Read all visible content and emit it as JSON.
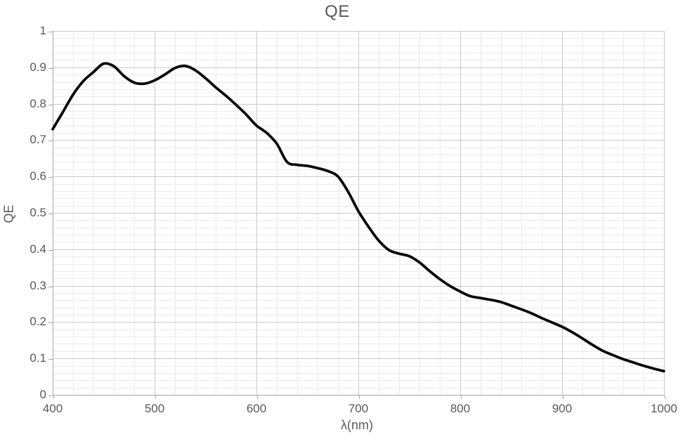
{
  "chart_data": {
    "type": "line",
    "title": "QE",
    "xlabel": "λ(nm)",
    "ylabel": "QE",
    "xlim": [
      400,
      1000
    ],
    "ylim": [
      0,
      1
    ],
    "x_major_step": 100,
    "x_minor_step": 20,
    "y_major_step": 0.1,
    "y_minor_step": 0.02,
    "x_tick_labels": [
      "400",
      "500",
      "600",
      "700",
      "800",
      "900",
      "1000"
    ],
    "y_tick_labels": [
      "0",
      "0.1",
      "0.2",
      "0.3",
      "0.4",
      "0.5",
      "0.6",
      "0.7",
      "0.8",
      "0.9",
      "1"
    ],
    "grid": {
      "major": true,
      "minor": true
    },
    "legend_position": "none",
    "colors": {
      "line": "#0a0a0a",
      "major_grid": "#c9c9c9",
      "minor_grid": "#ebebeb",
      "axis": "#a6a6a6",
      "text": "#595959",
      "background": "#ffffff"
    },
    "series": [
      {
        "name": "QE",
        "x": [
          400,
          410,
          420,
          430,
          440,
          450,
          460,
          470,
          480,
          490,
          500,
          510,
          520,
          530,
          540,
          550,
          560,
          570,
          580,
          590,
          600,
          610,
          620,
          630,
          640,
          650,
          660,
          670,
          680,
          690,
          700,
          710,
          720,
          730,
          740,
          750,
          760,
          770,
          780,
          790,
          800,
          810,
          820,
          830,
          840,
          850,
          860,
          870,
          880,
          890,
          900,
          910,
          920,
          930,
          940,
          950,
          960,
          970,
          980,
          990,
          1000
        ],
        "y": [
          0.73,
          0.777,
          0.825,
          0.862,
          0.887,
          0.91,
          0.903,
          0.876,
          0.858,
          0.855,
          0.864,
          0.88,
          0.898,
          0.904,
          0.892,
          0.87,
          0.845,
          0.822,
          0.797,
          0.77,
          0.74,
          0.72,
          0.69,
          0.64,
          0.632,
          0.629,
          0.623,
          0.615,
          0.6,
          0.558,
          0.505,
          0.462,
          0.424,
          0.398,
          0.388,
          0.381,
          0.364,
          0.34,
          0.318,
          0.299,
          0.284,
          0.271,
          0.266,
          0.261,
          0.255,
          0.245,
          0.235,
          0.224,
          0.211,
          0.199,
          0.187,
          0.172,
          0.155,
          0.137,
          0.121,
          0.109,
          0.098,
          0.089,
          0.08,
          0.072,
          0.065
        ]
      }
    ]
  }
}
